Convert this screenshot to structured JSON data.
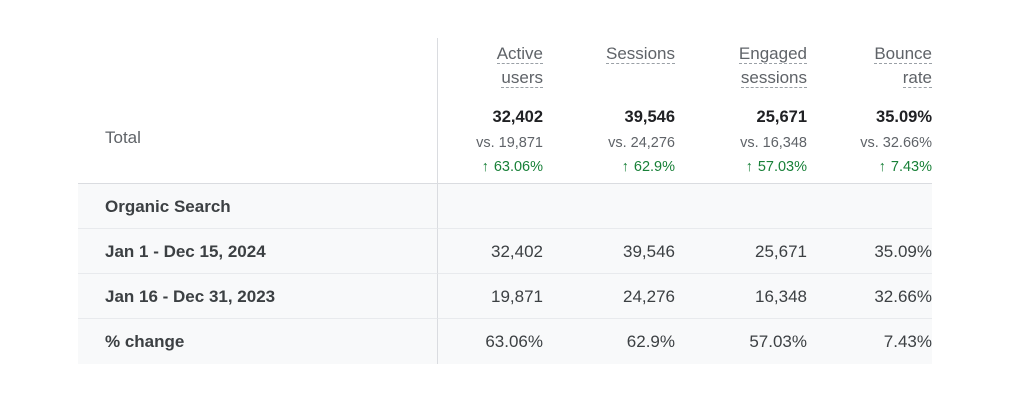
{
  "table": {
    "total_label": "Total",
    "columns": [
      {
        "title_line1": "Active",
        "title_line2": "users",
        "total": "32,402",
        "comparison": "vs. 19,871",
        "change": "63.06%"
      },
      {
        "title_line1": "Sessions",
        "title_line2": "",
        "total": "39,546",
        "comparison": "vs. 24,276",
        "change": "62.9%"
      },
      {
        "title_line1": "Engaged",
        "title_line2": "sessions",
        "total": "25,671",
        "comparison": "vs. 16,348",
        "change": "57.03%"
      },
      {
        "title_line1": "Bounce",
        "title_line2": "rate",
        "total": "35.09%",
        "comparison": "vs. 32.66%",
        "change": "7.43%"
      }
    ],
    "change_arrow": "↑",
    "change_color": "#188038",
    "rows": [
      {
        "label": "Organic Search",
        "values": [
          "",
          "",
          "",
          ""
        ]
      },
      {
        "label": "Jan 1 - Dec 15, 2024",
        "values": [
          "32,402",
          "39,546",
          "25,671",
          "35.09%"
        ]
      },
      {
        "label": "Jan 16 - Dec 31, 2023",
        "values": [
          "19,871",
          "24,276",
          "16,348",
          "32.66%"
        ]
      },
      {
        "label": "% change",
        "values": [
          "63.06%",
          "62.9%",
          "57.03%",
          "7.43%"
        ]
      }
    ]
  }
}
